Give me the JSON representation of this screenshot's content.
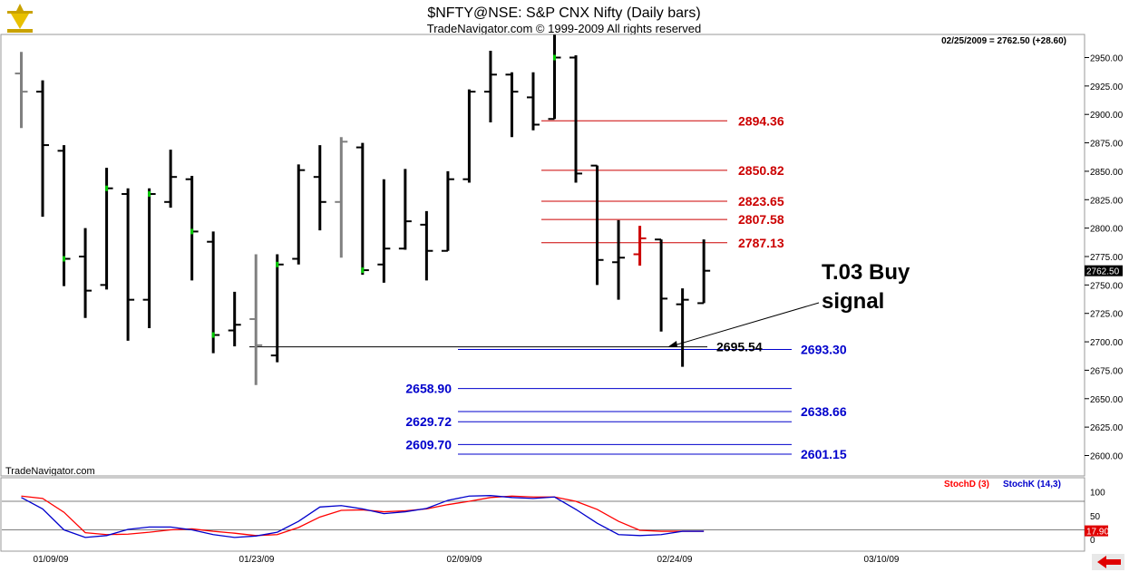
{
  "header": {
    "title": "$NFTY@NSE:  S&P CNX Nifty  (Daily bars)",
    "copyright": "TradeNavigator.com © 1999-2009 All rights reserved",
    "quote": "02/25/2009 = 2762.50 (+28.60)",
    "watermark": "TradeNavigator.com"
  },
  "colors": {
    "background": "#ffffff",
    "bar": "#000000",
    "bar_gray": "#808080",
    "up_tick": "#00cc00",
    "resistance": "#cc0000",
    "support": "#0000cc",
    "stochD": "#ff0000",
    "stochK": "#0000cc"
  },
  "chart_data": [
    {
      "type": "ohlc",
      "title": "$NFTY@NSE:  S&P CNX Nifty  (Daily bars)",
      "ylim": [
        2590,
        2970
      ],
      "y_ticks": [
        "2950.00",
        "2925.00",
        "2900.00",
        "2875.00",
        "2850.00",
        "2825.00",
        "2800.00",
        "2775.00",
        "2750.00",
        "2725.00",
        "2700.00",
        "2675.00",
        "2650.00",
        "2625.00",
        "2600.00"
      ],
      "x_labels": [
        "01/09/09",
        "01/23/09",
        "02/09/09",
        "02/24/09",
        "03/10/09"
      ],
      "last_price_label": "2762.50",
      "bars": [
        {
          "open": 2936,
          "high": 2955,
          "low": 2888,
          "close": 2920,
          "color": "gray"
        },
        {
          "open": 2920,
          "high": 2930,
          "low": 2810,
          "close": 2873,
          "color": "black"
        },
        {
          "open": 2868,
          "high": 2873,
          "low": 2749,
          "close": 2773,
          "color": "black",
          "mark": "green"
        },
        {
          "open": 2775,
          "high": 2800,
          "low": 2721,
          "close": 2745,
          "color": "black"
        },
        {
          "open": 2750,
          "high": 2853,
          "low": 2746,
          "close": 2835,
          "color": "black",
          "mark": "green"
        },
        {
          "open": 2830,
          "high": 2835,
          "low": 2701,
          "close": 2737,
          "color": "black"
        },
        {
          "open": 2737,
          "high": 2835,
          "low": 2712,
          "close": 2830,
          "color": "black",
          "mark": "green"
        },
        {
          "open": 2823,
          "high": 2869,
          "low": 2818,
          "close": 2845,
          "color": "black"
        },
        {
          "open": 2843,
          "high": 2846,
          "low": 2754,
          "close": 2797,
          "color": "black",
          "mark": "green"
        },
        {
          "open": 2788,
          "high": 2797,
          "low": 2690,
          "close": 2706,
          "color": "black",
          "mark": "green"
        },
        {
          "open": 2710,
          "high": 2744,
          "low": 2696,
          "close": 2715,
          "color": "black"
        },
        {
          "open": 2720,
          "high": 2777,
          "low": 2662,
          "close": 2697,
          "color": "gray"
        },
        {
          "open": 2688,
          "high": 2777,
          "low": 2682,
          "close": 2768,
          "color": "black",
          "mark": "green"
        },
        {
          "open": 2773,
          "high": 2856,
          "low": 2768,
          "close": 2851,
          "color": "black"
        },
        {
          "open": 2845,
          "high": 2873,
          "low": 2798,
          "close": 2823,
          "color": "black"
        },
        {
          "open": 2823,
          "high": 2880,
          "low": 2774,
          "close": 2876,
          "color": "gray"
        },
        {
          "open": 2871,
          "high": 2875,
          "low": 2759,
          "close": 2763,
          "color": "black",
          "mark": "green"
        },
        {
          "open": 2768,
          "high": 2843,
          "low": 2752,
          "close": 2782,
          "color": "black"
        },
        {
          "open": 2782,
          "high": 2852,
          "low": 2781,
          "close": 2806,
          "color": "black"
        },
        {
          "open": 2803,
          "high": 2815,
          "low": 2754,
          "close": 2780,
          "color": "black"
        },
        {
          "open": 2780,
          "high": 2850,
          "low": 2780,
          "close": 2843,
          "color": "black"
        },
        {
          "open": 2843,
          "high": 2922,
          "low": 2840,
          "close": 2920,
          "color": "black"
        },
        {
          "open": 2920,
          "high": 2956,
          "low": 2893,
          "close": 2935,
          "color": "black"
        },
        {
          "open": 2935,
          "high": 2937,
          "low": 2880,
          "close": 2920,
          "color": "black"
        },
        {
          "open": 2915,
          "high": 2937,
          "low": 2886,
          "close": 2891,
          "color": "black"
        },
        {
          "open": 2896,
          "high": 2970,
          "low": 2896,
          "close": 2950,
          "color": "black",
          "mark": "green"
        },
        {
          "open": 2950,
          "high": 2952,
          "low": 2840,
          "close": 2848,
          "color": "black"
        },
        {
          "open": 2855,
          "high": 2855,
          "low": 2750,
          "close": 2772,
          "color": "black"
        },
        {
          "open": 2770,
          "high": 2807,
          "low": 2737,
          "close": 2774,
          "color": "black"
        },
        {
          "open": 2777,
          "high": 2802,
          "low": 2767,
          "close": 2791,
          "color": "red"
        },
        {
          "open": 2790,
          "high": 2790,
          "low": 2709,
          "close": 2738,
          "color": "black"
        },
        {
          "open": 2733,
          "high": 2747,
          "low": 2678,
          "close": 2737,
          "color": "black"
        },
        {
          "open": 2734,
          "high": 2790,
          "low": 2734,
          "close": 2762.5,
          "color": "black"
        }
      ],
      "resistance_levels": [
        "2894.36",
        "2850.82",
        "2823.65",
        "2807.58",
        "2787.13"
      ],
      "support_levels_left": [
        "2658.90",
        "2629.72",
        "2609.70"
      ],
      "support_levels_right": [
        "2693.30",
        "2638.66",
        "2601.15"
      ],
      "support_line_label": "2695.54",
      "annotation": "T.03 Buy\nsignal"
    },
    {
      "type": "line",
      "title": "",
      "ylim": [
        0,
        100
      ],
      "y_ticks": [
        "100",
        "50",
        "0"
      ],
      "last_value_label": "17.90",
      "series": [
        {
          "name": "StochD (3)",
          "values": [
            91,
            86,
            57,
            14,
            10,
            11,
            15,
            20,
            22,
            17,
            13,
            8,
            10,
            25,
            47,
            61,
            62,
            58,
            60,
            64,
            73,
            80,
            88,
            91,
            89,
            89,
            80,
            63,
            38,
            19,
            17,
            17,
            17
          ]
        },
        {
          "name": "StochK (14,3)",
          "values": [
            88,
            64,
            20,
            4,
            8,
            21,
            26,
            26,
            20,
            10,
            4,
            7,
            15,
            38,
            68,
            71,
            64,
            54,
            58,
            65,
            82,
            91,
            92,
            88,
            86,
            89,
            63,
            34,
            10,
            8,
            10,
            17,
            17
          ]
        }
      ]
    }
  ]
}
